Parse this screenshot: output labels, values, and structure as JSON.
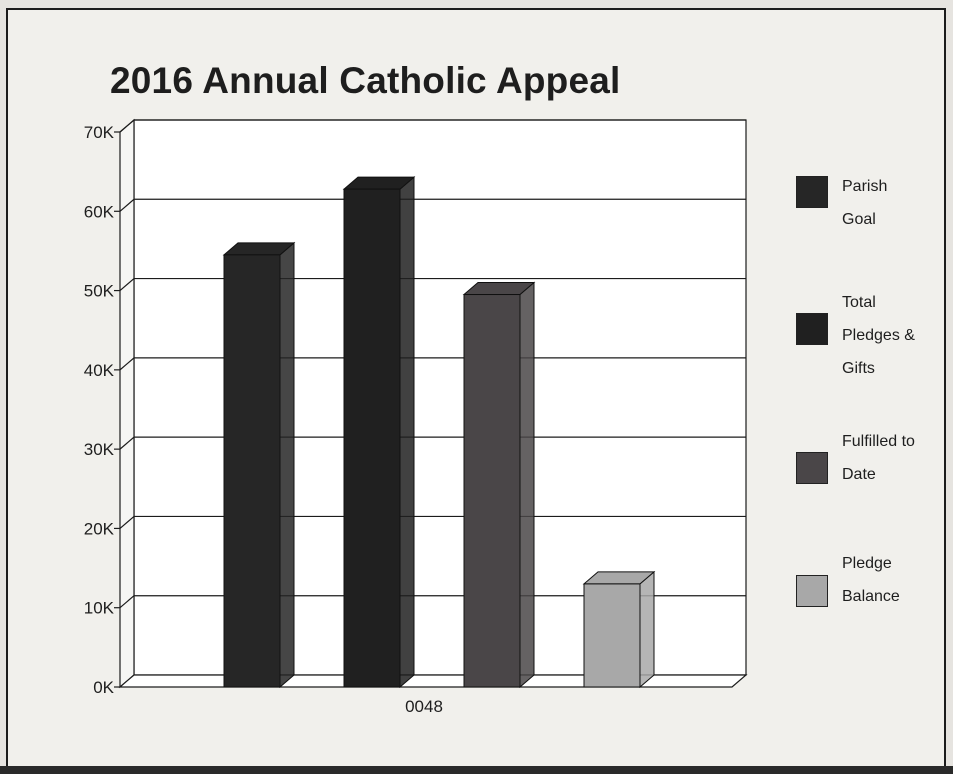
{
  "chart_data": {
    "type": "bar",
    "title": "2016 Annual Catholic Appeal",
    "categories": [
      "0048"
    ],
    "series": [
      {
        "name": "Parish Goal",
        "values": [
          54500
        ],
        "color": "#262626"
      },
      {
        "name": "Total Pledges & Gifts",
        "values": [
          62800
        ],
        "color": "#202020"
      },
      {
        "name": "Fulfilled to Date",
        "values": [
          49500
        ],
        "color": "#4a4648"
      },
      {
        "name": "Pledge Balance",
        "values": [
          13000
        ],
        "color": "#a8a8a8"
      }
    ],
    "ylim": [
      0,
      70000
    ],
    "yticks": [
      "0K",
      "10K",
      "20K",
      "30K",
      "40K",
      "50K",
      "60K",
      "70K"
    ],
    "grid": true,
    "legend": "right",
    "xlabel": "",
    "ylabel": ""
  },
  "legend_labels": [
    "Parish\nGoal",
    "Total\nPledges &\nGifts",
    "Fulfilled to\nDate",
    "Pledge\nBalance"
  ]
}
